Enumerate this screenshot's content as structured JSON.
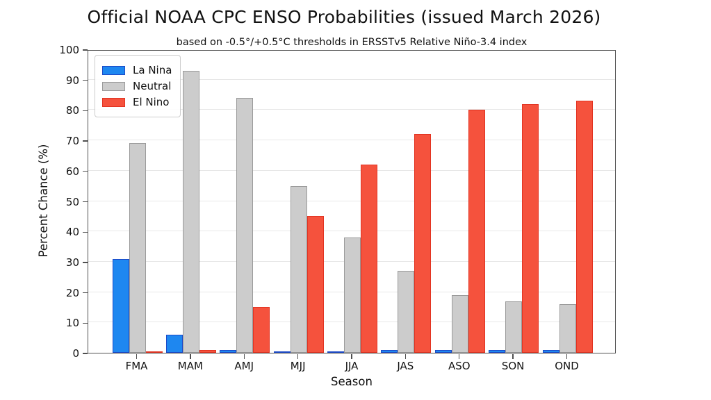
{
  "chart_data": {
    "type": "bar",
    "title": "Official NOAA CPC ENSO Probabilities (issued March 2026)",
    "subtitle": "based on -0.5°/+0.5°C thresholds in ERSSTv5 Relative Niño-3.4 index",
    "xlabel": "Season",
    "ylabel": "Percent Chance (%)",
    "ylim": [
      0,
      100
    ],
    "yticks": [
      0,
      10,
      20,
      30,
      40,
      50,
      60,
      70,
      80,
      90,
      100
    ],
    "grid": true,
    "legend_position": "upper-left",
    "categories": [
      "FMA",
      "MAM",
      "AMJ",
      "MJJ",
      "JJA",
      "JAS",
      "ASO",
      "SON",
      "OND"
    ],
    "series": [
      {
        "name": "La Nina",
        "color": "#1e87f0",
        "edge_color": "#1b49c8",
        "values": [
          31,
          6,
          1,
          0,
          0,
          1,
          1,
          1,
          1
        ]
      },
      {
        "name": "Neutral",
        "color": "#cccccc",
        "edge_color": "#9a9a9a",
        "values": [
          69,
          93,
          84,
          55,
          38,
          27,
          19,
          17,
          16
        ]
      },
      {
        "name": "El Nino",
        "color": "#f5523d",
        "edge_color": "#e23321",
        "values": [
          0,
          1,
          15,
          45,
          62,
          72,
          80,
          82,
          83
        ]
      }
    ]
  },
  "layout_colors": {
    "grid": "#e7e7e7",
    "frame": "#4f4f4f",
    "background": "#ffffff",
    "text": "#111111"
  }
}
